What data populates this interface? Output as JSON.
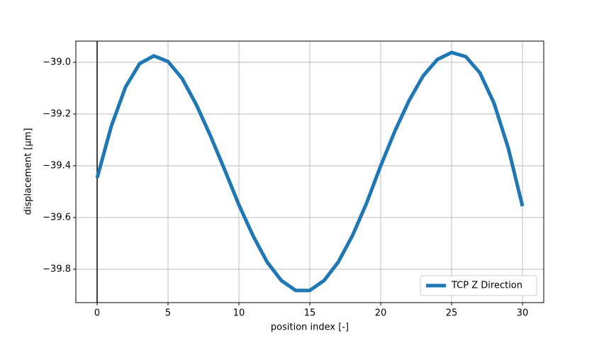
{
  "chart_data": {
    "type": "line",
    "xlabel": "position index [-]",
    "ylabel": "displacement [μm]",
    "x": [
      0,
      1,
      2,
      3,
      4,
      5,
      6,
      7,
      8,
      9,
      10,
      11,
      12,
      13,
      14,
      15,
      16,
      17,
      18,
      19,
      20,
      21,
      22,
      23,
      24,
      25,
      26,
      27,
      28,
      29,
      30
    ],
    "series": [
      {
        "name": "TCP Z Direction",
        "color": "#1f77b4",
        "values": [
          -39.447,
          -39.247,
          -39.096,
          -39.005,
          -38.975,
          -38.997,
          -39.063,
          -39.164,
          -39.285,
          -39.416,
          -39.551,
          -39.671,
          -39.773,
          -39.844,
          -39.882,
          -39.882,
          -39.844,
          -39.773,
          -39.671,
          -39.545,
          -39.4,
          -39.266,
          -39.148,
          -39.052,
          -38.989,
          -38.962,
          -38.978,
          -39.041,
          -39.159,
          -39.332,
          -39.556
        ]
      }
    ],
    "xlim": [
      -1.5,
      31.5
    ],
    "ylim": [
      -39.929,
      -38.918
    ],
    "xticks": [
      0,
      5,
      10,
      15,
      20,
      25,
      30
    ],
    "yticks": [
      {
        "value": -39.8,
        "label": "−39.8"
      },
      {
        "value": -39.6,
        "label": "−39.6"
      },
      {
        "value": -39.4,
        "label": "−39.4"
      },
      {
        "value": -39.2,
        "label": "−39.2"
      },
      {
        "value": -39.0,
        "label": "−39.0"
      }
    ],
    "vlines": [
      0
    ],
    "vline_color": "#000000",
    "grid": true,
    "legend": "lower-right"
  }
}
